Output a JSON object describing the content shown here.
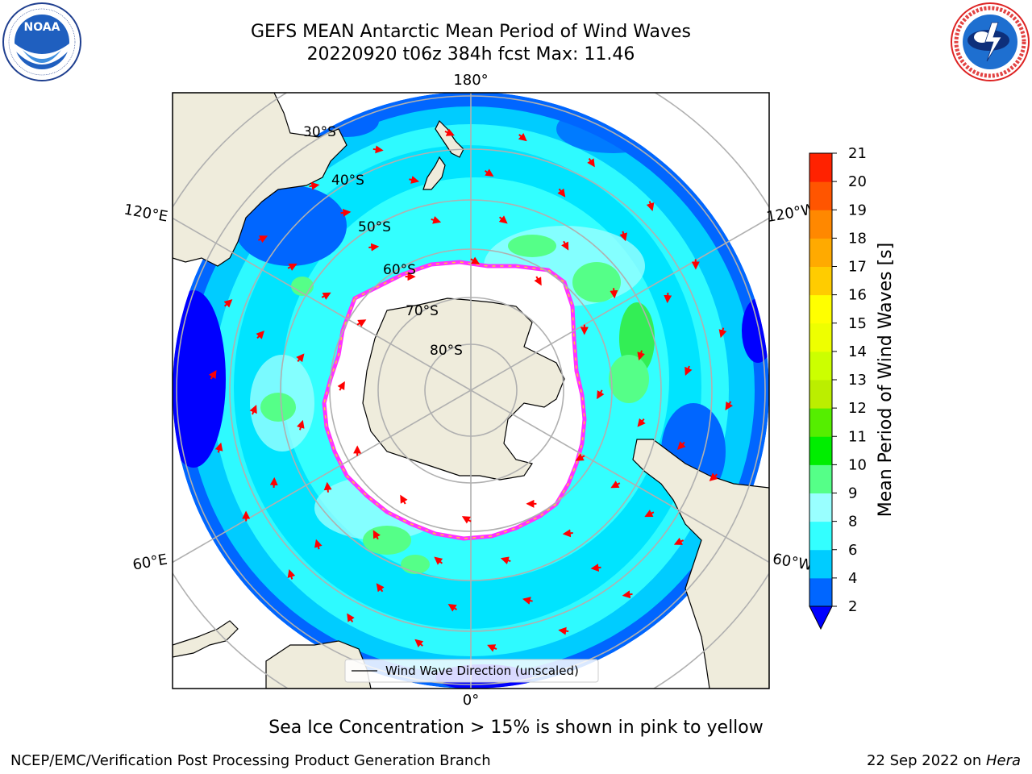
{
  "title": {
    "line1": "GEFS MEAN Antarctic Mean Period of Wind Waves",
    "line2": "20220920 t06z 384h fcst   Max: 11.46"
  },
  "logos": {
    "left": {
      "name": "NOAA",
      "text": "NOAA",
      "ring_text": "NATIONAL OCEANIC AND ATMOSPHERIC ADMINISTRATION · U.S. DEPARTMENT OF COMMERCE"
    },
    "right": {
      "name": "National Weather Service",
      "ring_text": "NATIONAL WEATHER SERVICE"
    }
  },
  "map": {
    "projection": "south-polar-stereographic",
    "lon_labels": {
      "top": "180°",
      "bottom": "0°",
      "upper_left": "120°E",
      "upper_right": "120°W",
      "lower_left": "60°E",
      "lower_right": "60°W"
    },
    "lat_labels": [
      "30°S",
      "40°S",
      "50°S",
      "60°S",
      "70°S",
      "80°S"
    ],
    "legend": "Wind Wave Direction (unscaled)",
    "colors": {
      "land": "#efecdc",
      "ice_free_ice": "#ffffff",
      "ice_edge_pink": "#ff33ff",
      "ice_edge_yellow": "#ffcc33",
      "arrow": "#ff0000",
      "grid": "#b0b0b0"
    }
  },
  "colorbar": {
    "label": "Mean Period of Wind Waves [s]",
    "ticks": [
      "2",
      "4",
      "6",
      "8",
      "9",
      "10",
      "11",
      "12",
      "13",
      "14",
      "15",
      "16",
      "17",
      "18",
      "19",
      "20",
      "21"
    ],
    "colors": [
      "#0066ff",
      "#00ccff",
      "#33ffff",
      "#99ffff",
      "#55ff88",
      "#00ee00",
      "#55ee00",
      "#bbee00",
      "#ccff00",
      "#eeff00",
      "#ffff00",
      "#ffcc00",
      "#ffaa00",
      "#ff8800",
      "#ff5500",
      "#ff2200"
    ],
    "under_color": "#0000ff"
  },
  "caption": "Sea Ice Concentration > 15% is shown in pink to yellow",
  "footer": {
    "left": "NCEP/EMC/Verification Post Processing Product Generation Branch",
    "right_prefix": "22 Sep 2022 on ",
    "right_host": "Hera"
  }
}
